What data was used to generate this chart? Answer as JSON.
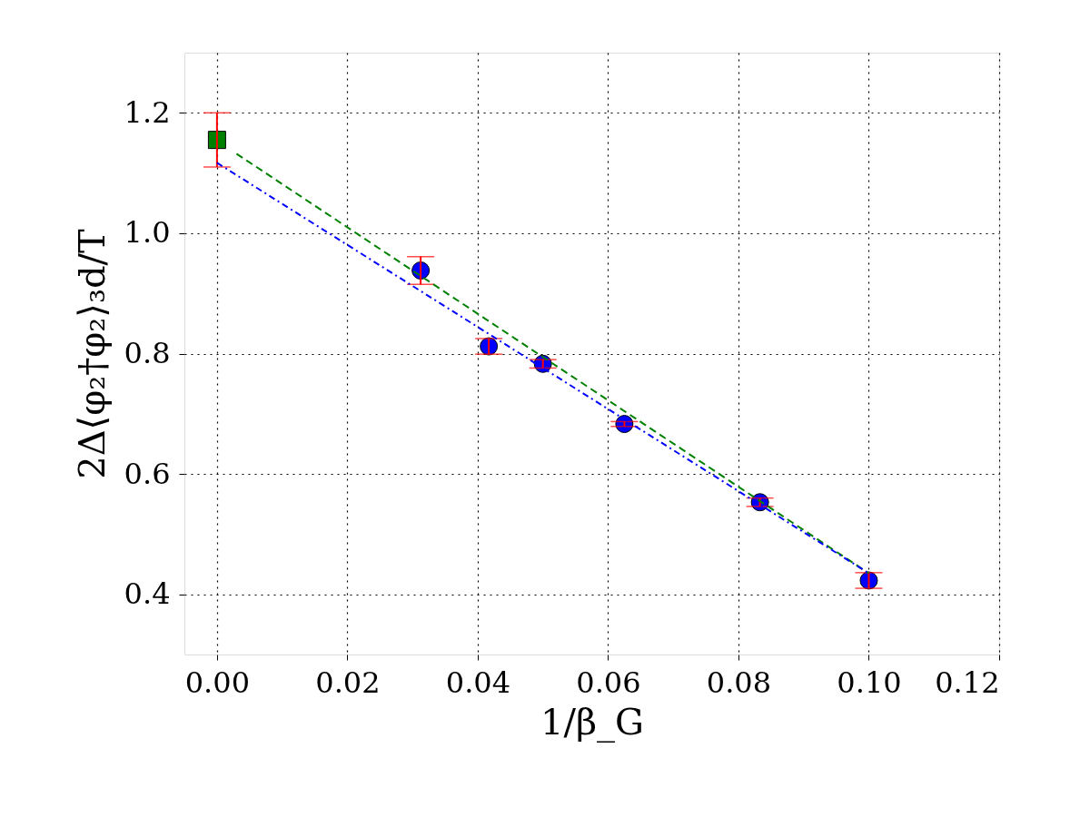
{
  "chart_data": {
    "type": "scatter",
    "xlabel": "1/β_G",
    "ylabel": "2Δ⟨φ₂†φ₂⟩₃d/T",
    "xlim": [
      -0.005,
      0.12
    ],
    "ylim": [
      0.3,
      1.3
    ],
    "xticks": [
      {
        "value": 0,
        "label": "0.00"
      },
      0.02,
      0.04,
      0.06,
      0.08,
      {
        "value": 0.1,
        "label": "0.10"
      },
      0.12
    ],
    "yticks": [
      0.4,
      0.6,
      0.8,
      {
        "value": 1,
        "label": "1.0"
      },
      1.2
    ],
    "grid": true,
    "series": [
      {
        "type": "line",
        "color": "#008000",
        "line_style": "dashed",
        "marker": "none",
        "x": [
          0.003,
          0.1
        ],
        "values": [
          1.132,
          0.435
        ]
      },
      {
        "type": "line",
        "color": "#0000ff",
        "line_style": "dotted",
        "marker": "none",
        "x": [
          0,
          0.1
        ],
        "values": [
          1.117,
          0.435
        ]
      },
      {
        "color": "#008000",
        "marker": "square",
        "x": [
          0
        ],
        "values": [
          1.155
        ],
        "errors": [
          0.045
        ]
      },
      {
        "color": "#0000ff",
        "marker": "circle",
        "x": [
          0.03125,
          0.0417,
          0.05,
          0.0625,
          0.0833,
          0.1
        ],
        "values": [
          0.938,
          0.812,
          0.783,
          0.683,
          0.553,
          0.423
        ],
        "errors": [
          0.023,
          0.013,
          0.007,
          0.004,
          0.007,
          0.013
        ]
      }
    ]
  }
}
